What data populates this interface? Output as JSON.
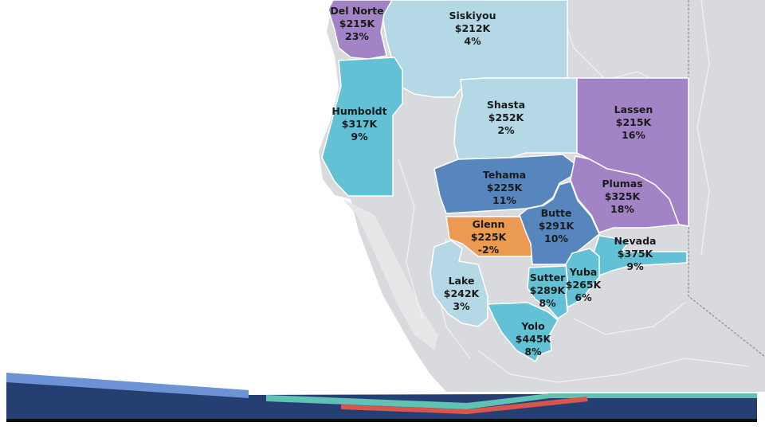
{
  "colors": {
    "purple": "#a183c6",
    "teal": "#62c1d4",
    "light_blue": "#b4d8e6",
    "steel_blue": "#5686bd",
    "orange": "#eb9a52",
    "land_gray": "#d8dadd",
    "road_white": "#f4f4f4",
    "footer_navy": "#263f73",
    "footer_black": "#0b0b0b",
    "stripe_blue": "#6d93d6",
    "stripe_teal": "#5fc2b4",
    "stripe_red": "#d9564e"
  },
  "counties": [
    {
      "id": "del-norte",
      "name": "Del Norte",
      "price": "$215K",
      "change": "23%",
      "color": "purple"
    },
    {
      "id": "siskiyou",
      "name": "Siskiyou",
      "price": "$212K",
      "change": "4%",
      "color": "light_blue"
    },
    {
      "id": "humboldt",
      "name": "Humboldt",
      "price": "$317K",
      "change": "9%",
      "color": "teal"
    },
    {
      "id": "shasta",
      "name": "Shasta",
      "price": "$252K",
      "change": "2%",
      "color": "light_blue"
    },
    {
      "id": "lassen",
      "name": "Lassen",
      "price": "$215K",
      "change": "16%",
      "color": "purple"
    },
    {
      "id": "tehama",
      "name": "Tehama",
      "price": "$225K",
      "change": "11%",
      "color": "steel_blue"
    },
    {
      "id": "plumas",
      "name": "Plumas",
      "price": "$325K",
      "change": "18%",
      "color": "purple"
    },
    {
      "id": "glenn",
      "name": "Glenn",
      "price": "$225K",
      "change": "-2%",
      "color": "orange"
    },
    {
      "id": "butte",
      "name": "Butte",
      "price": "$291K",
      "change": "10%",
      "color": "steel_blue"
    },
    {
      "id": "nevada",
      "name": "Nevada",
      "price": "$375K",
      "change": "9%",
      "color": "teal"
    },
    {
      "id": "lake",
      "name": "Lake",
      "price": "$242K",
      "change": "3%",
      "color": "light_blue"
    },
    {
      "id": "sutter",
      "name": "Sutter",
      "price": "$289K",
      "change": "8%",
      "color": "teal"
    },
    {
      "id": "yuba",
      "name": "Yuba",
      "price": "$265K",
      "change": "6%",
      "color": "teal"
    },
    {
      "id": "yolo",
      "name": "Yolo",
      "price": "$445K",
      "change": "8%",
      "color": "teal"
    }
  ]
}
